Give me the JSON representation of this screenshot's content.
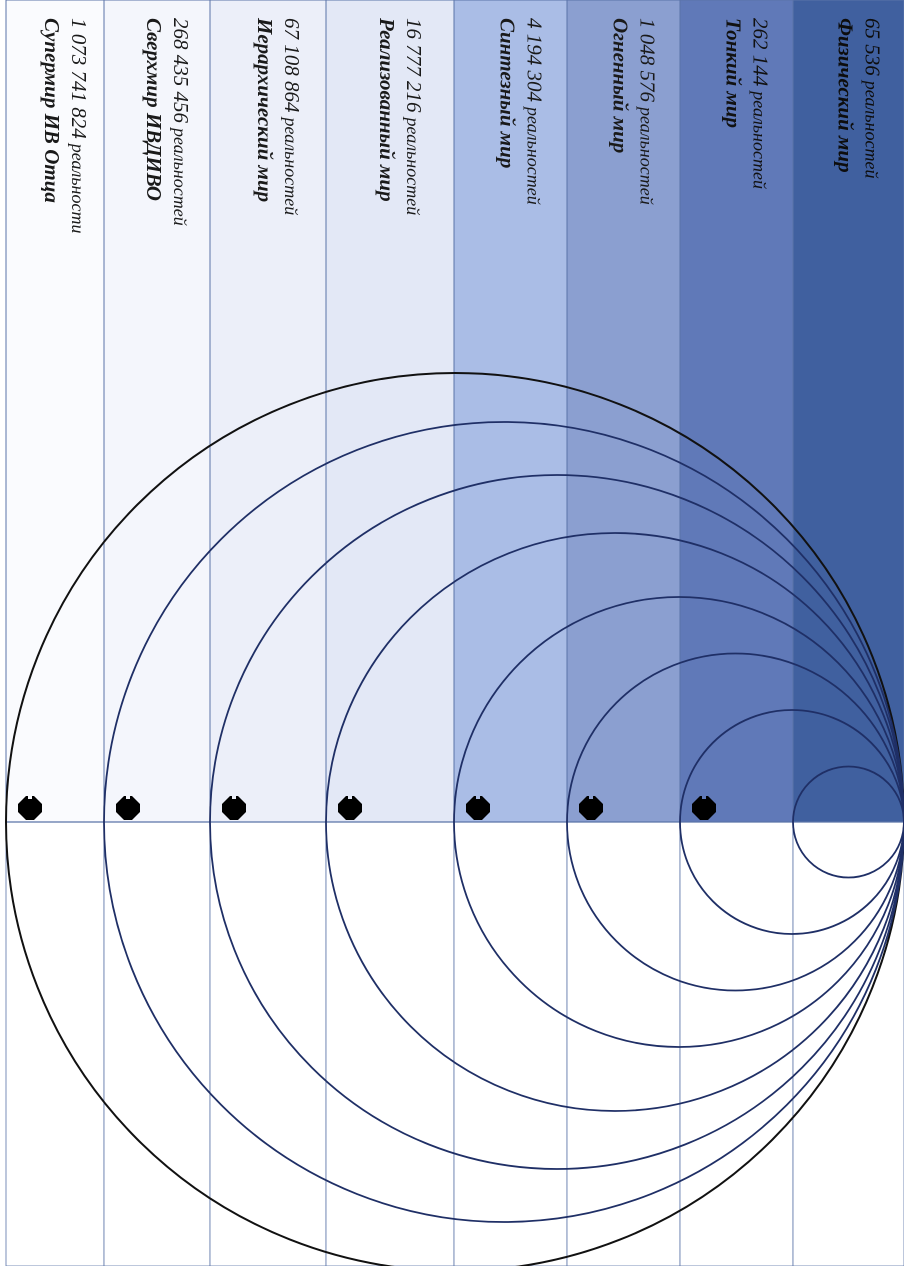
{
  "worlds": [
    {
      "name": "Супермир ИВ Отца",
      "count": "1 073 741 824",
      "unit": "реальности",
      "fill": "#fafbfe",
      "text_color": "#1a1a1a"
    },
    {
      "name": "Сверхмир ИВДИВО",
      "count": "268 435 456",
      "unit": "реальностей",
      "fill": "#f4f6fc",
      "text_color": "#1a1a1a"
    },
    {
      "name": "Иерархический мир",
      "count": "67 108 864",
      "unit": "реальностей",
      "fill": "#eceff9",
      "text_color": "#1a1a1a"
    },
    {
      "name": "Реализованный мир",
      "count": "16 777 216",
      "unit": "реальностей",
      "fill": "#e3e8f6",
      "text_color": "#1a1a1a"
    },
    {
      "name": "Синтезный мир",
      "count": "4 194 304",
      "unit": "реальностей",
      "fill": "#aabde6",
      "text_color": "#1a1a1a"
    },
    {
      "name": "Огненный мир",
      "count": "1 048 576",
      "unit": "реальностей",
      "fill": "#8b9fd0",
      "text_color": "#1a1a1a"
    },
    {
      "name": "Тонкий мир",
      "count": "262 144",
      "unit": "реальностей",
      "fill": "#6079b8",
      "text_color": "#111111"
    },
    {
      "name": "Физический мир",
      "count": "65 536",
      "unit": "реальностей",
      "fill": "#40609f",
      "text_color": "#0d0d0d"
    }
  ],
  "colors": {
    "border": "#5a73a8",
    "arc": "#1f2f66",
    "outer_arc": "#111111",
    "house_icon": "#000000"
  },
  "icons": {
    "marker": "house-icon"
  }
}
